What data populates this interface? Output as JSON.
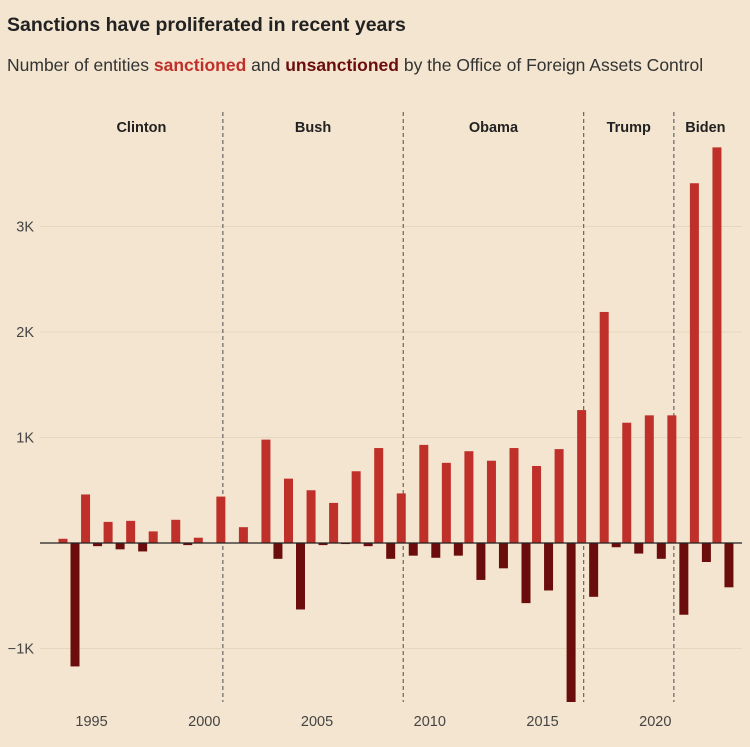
{
  "title": "Sanctions have proliferated in recent years",
  "subtitle": {
    "prefix": "Number of entities ",
    "sanctioned": "sanctioned",
    "middle": " and ",
    "unsanctioned": "unsanctioned",
    "suffix": " by the Office of Foreign Assets Control"
  },
  "colors": {
    "sanctioned": "#c0302a",
    "unsanctioned": "#6b0d0d",
    "background": "#f3e5cf"
  },
  "chart_data": {
    "type": "bar",
    "x": [
      1994,
      1995,
      1996,
      1997,
      1998,
      1999,
      2000,
      2001,
      2002,
      2003,
      2004,
      2005,
      2006,
      2007,
      2008,
      2009,
      2010,
      2011,
      2012,
      2013,
      2014,
      2015,
      2016,
      2017,
      2018,
      2019,
      2020,
      2021,
      2022,
      2023
    ],
    "series": [
      {
        "name": "sanctioned",
        "values": [
          40,
          460,
          200,
          210,
          110,
          220,
          50,
          440,
          150,
          980,
          610,
          500,
          380,
          680,
          900,
          470,
          930,
          760,
          870,
          780,
          900,
          730,
          890,
          1260,
          2190,
          1140,
          1210,
          1210,
          3410,
          3750
        ]
      },
      {
        "name": "unsanctioned",
        "values": [
          -1170,
          -30,
          -60,
          -80,
          0,
          -20,
          0,
          0,
          0,
          -150,
          -630,
          -20,
          -10,
          -30,
          -150,
          -120,
          -140,
          -120,
          -350,
          -240,
          -570,
          -450,
          -1510,
          -510,
          -40,
          -100,
          -150,
          -680,
          -180,
          -420
        ]
      }
    ],
    "yticks": [
      {
        "value": -1000,
        "label": "−1K"
      },
      {
        "value": 1000,
        "label": "1K"
      },
      {
        "value": 2000,
        "label": "2K"
      },
      {
        "value": 3000,
        "label": "3K"
      }
    ],
    "xticks": [
      1995,
      2000,
      2005,
      2010,
      2015,
      2020
    ],
    "ylim": [
      -1500,
      3800
    ],
    "xlim": [
      1992.3,
      2023.8
    ],
    "grid": true,
    "eras": [
      {
        "name": "Clinton",
        "start": 1992.3,
        "end": 2001
      },
      {
        "name": "Bush",
        "start": 2001,
        "end": 2009
      },
      {
        "name": "Obama",
        "start": 2009,
        "end": 2017
      },
      {
        "name": "Trump",
        "start": 2017,
        "end": 2021
      },
      {
        "name": "Biden",
        "start": 2021,
        "end": 2023.8
      }
    ],
    "era_dividers": [
      2001,
      2009,
      2017,
      2021
    ]
  }
}
